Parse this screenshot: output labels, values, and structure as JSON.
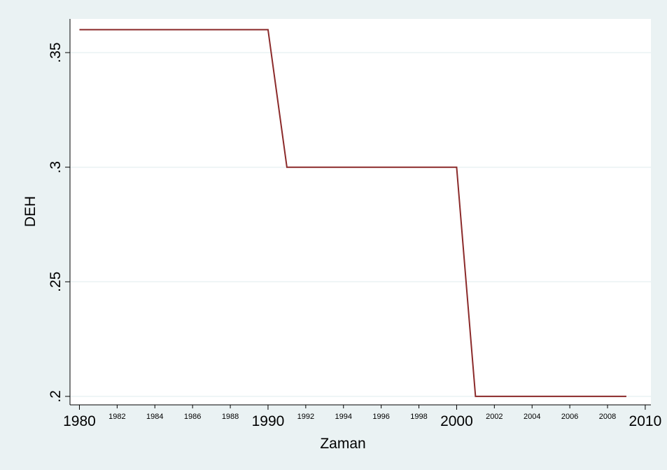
{
  "chart_data": {
    "type": "line",
    "x_label": "Zaman",
    "y_label": "DEH",
    "x": [
      1980,
      1981,
      1982,
      1983,
      1984,
      1985,
      1986,
      1987,
      1988,
      1989,
      1990,
      1991,
      1992,
      1993,
      1994,
      1995,
      1996,
      1997,
      1998,
      1999,
      2000,
      2001,
      2002,
      2003,
      2004,
      2005,
      2006,
      2007,
      2008,
      2009
    ],
    "series": [
      {
        "color": "#8b2a2a",
        "values": [
          0.36,
          0.36,
          0.36,
          0.36,
          0.36,
          0.36,
          0.36,
          0.36,
          0.36,
          0.36,
          0.36,
          0.3,
          0.3,
          0.3,
          0.3,
          0.3,
          0.3,
          0.3,
          0.3,
          0.3,
          0.3,
          0.2,
          0.2,
          0.2,
          0.2,
          0.2,
          0.2,
          0.2,
          0.2,
          0.2
        ]
      }
    ],
    "xlim": [
      1979.5,
      2010.3
    ],
    "ylim": [
      0.1963,
      0.3647
    ],
    "xticks": [
      1980,
      1990,
      2000,
      2010
    ],
    "xminor_ticks": [
      1982,
      1984,
      1986,
      1988,
      1992,
      1994,
      1996,
      1998,
      2002,
      2004,
      2006,
      2008
    ],
    "yticks": [
      {
        "value": 0.2,
        "label": ".2"
      },
      {
        "value": 0.25,
        "label": ".25"
      },
      {
        "value": 0.3,
        "label": ".3"
      },
      {
        "value": 0.35,
        "label": ".35"
      }
    ],
    "grid": true
  }
}
